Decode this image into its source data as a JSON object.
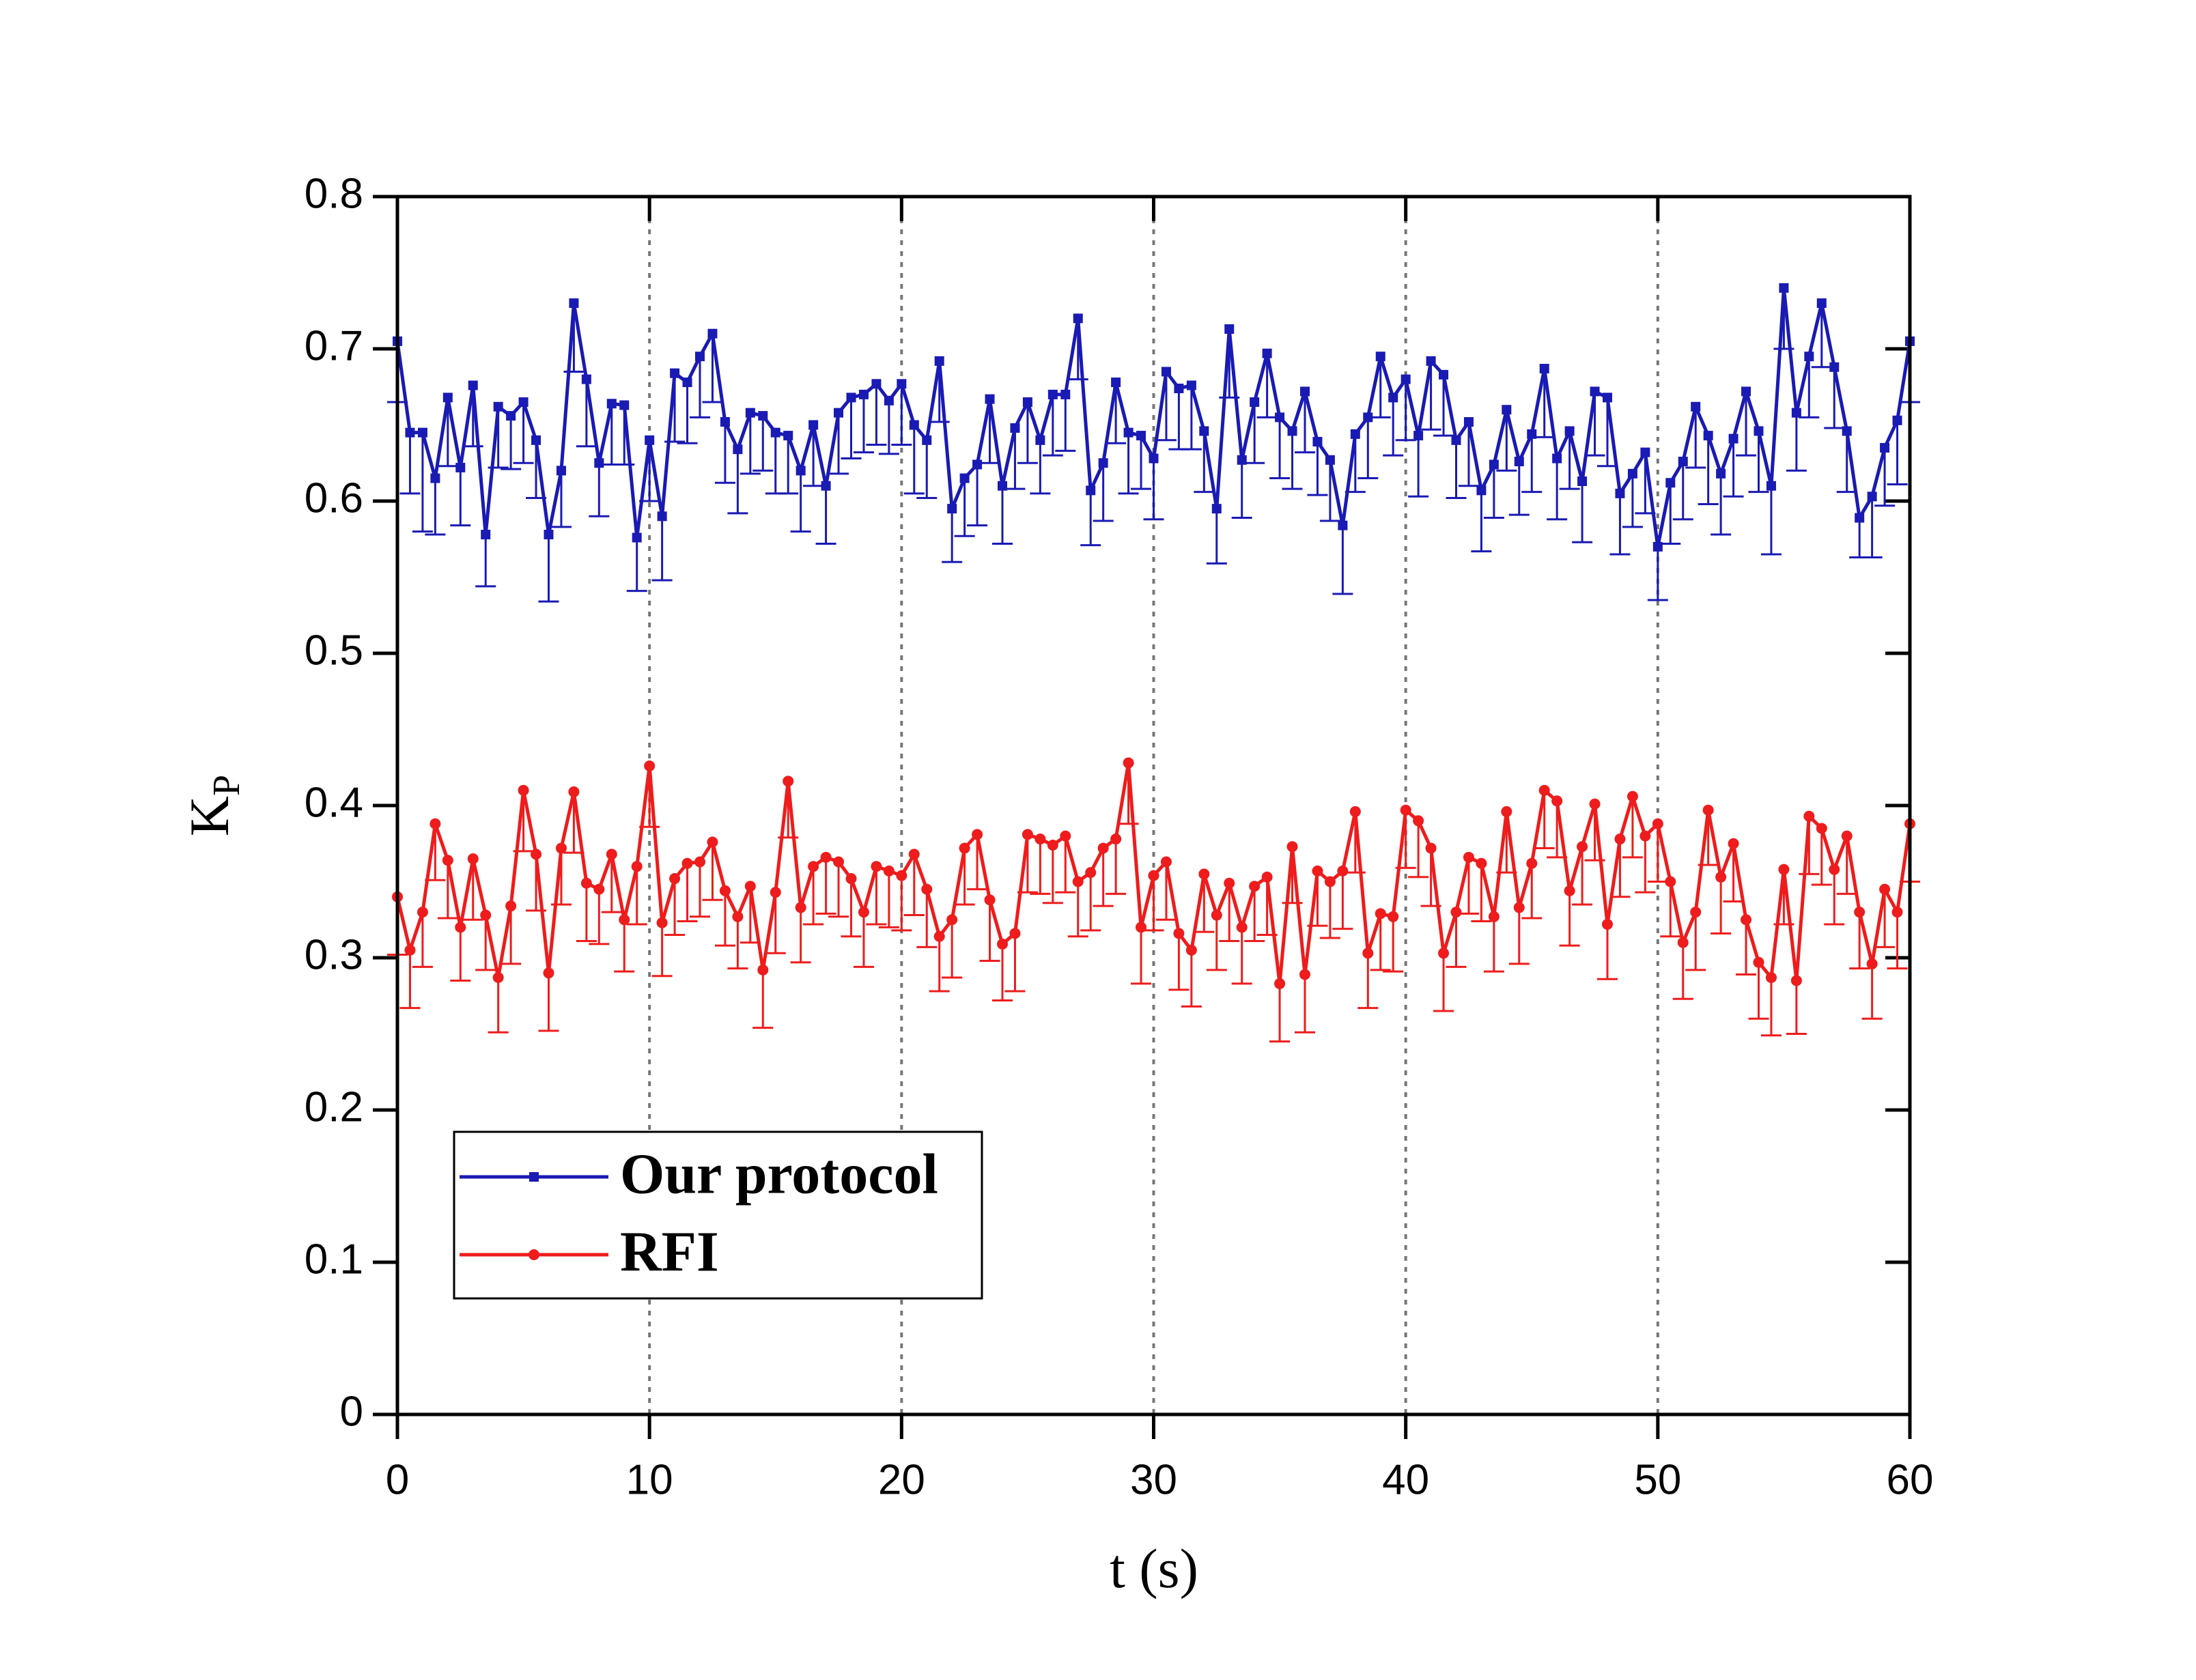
{
  "chart_data": {
    "type": "line",
    "xlabel": "t (s)",
    "ylabel": "K",
    "ylabel_sub": "P",
    "x": [
      0,
      0.5,
      1,
      1.5,
      2,
      2.5,
      3,
      3.5,
      4,
      4.5,
      5,
      5.5,
      6,
      6.5,
      7,
      7.5,
      8,
      8.5,
      9,
      9.5,
      10,
      10.5,
      11,
      11.5,
      12,
      12.5,
      13,
      13.5,
      14,
      14.5,
      15,
      15.5,
      16,
      16.5,
      17,
      17.5,
      18,
      18.5,
      19,
      19.5,
      20,
      20.5,
      21,
      21.5,
      22,
      22.5,
      23,
      23.5,
      24,
      24.5,
      25,
      25.5,
      26,
      26.5,
      27,
      27.5,
      28,
      28.5,
      29,
      29.5,
      30,
      30.5,
      31,
      31.5,
      32,
      32.5,
      33,
      33.5,
      34,
      34.5,
      35,
      35.5,
      36,
      36.5,
      37,
      37.5,
      38,
      38.5,
      39,
      39.5,
      40,
      40.5,
      41,
      41.5,
      42,
      42.5,
      43,
      43.5,
      44,
      44.5,
      45,
      45.5,
      46,
      46.5,
      47,
      47.5,
      48,
      48.5,
      49,
      49.5,
      50,
      50.5,
      51,
      51.5,
      52,
      52.5,
      53,
      53.5,
      54,
      54.5,
      55,
      55.5,
      56,
      56.5,
      57,
      57.5,
      58,
      58.5,
      59,
      59.5,
      60
    ],
    "series": [
      {
        "name": "Our protocol",
        "color": "#1a1ab4",
        "marker": "square",
        "values": [
          0.705,
          0.645,
          0.645,
          0.615,
          0.668,
          0.622,
          0.676,
          0.578,
          0.662,
          0.656,
          0.665,
          0.64,
          0.578,
          0.62,
          0.73,
          0.68,
          0.625,
          0.664,
          0.663,
          0.576,
          0.64,
          0.59,
          0.684,
          0.678,
          0.695,
          0.71,
          0.652,
          0.634,
          0.658,
          0.656,
          0.645,
          0.643,
          0.62,
          0.65,
          0.61,
          0.658,
          0.668,
          0.67,
          0.677,
          0.666,
          0.677,
          0.65,
          0.64,
          0.692,
          0.595,
          0.615,
          0.624,
          0.667,
          0.61,
          0.648,
          0.665,
          0.64,
          0.67,
          0.67,
          0.72,
          0.607,
          0.625,
          0.678,
          0.645,
          0.643,
          0.628,
          0.685,
          0.674,
          0.676,
          0.646,
          0.595,
          0.713,
          0.627,
          0.665,
          0.697,
          0.655,
          0.646,
          0.672,
          0.639,
          0.627,
          0.584,
          0.644,
          0.655,
          0.695,
          0.668,
          0.68,
          0.643,
          0.692,
          0.683,
          0.64,
          0.652,
          0.607,
          0.624,
          0.66,
          0.626,
          0.644,
          0.687,
          0.628,
          0.646,
          0.613,
          0.672,
          0.668,
          0.605,
          0.618,
          0.632,
          0.57,
          0.612,
          0.626,
          0.662,
          0.643,
          0.618,
          0.641,
          0.672,
          0.646,
          0.61,
          0.74,
          0.658,
          0.695,
          0.73,
          0.688,
          0.646,
          0.589,
          0.603,
          0.635,
          0.653,
          0.705
        ],
        "errors": [
          0.04,
          0.04,
          0.065,
          0.037,
          0.045,
          0.038,
          0.04,
          0.034,
          0.04,
          0.035,
          0.04,
          0.038,
          0.044,
          0.037,
          0.045,
          0.044,
          0.035,
          0.04,
          0.039,
          0.035,
          0.04,
          0.042,
          0.045,
          0.04,
          0.04,
          0.045,
          0.04,
          0.042,
          0.04,
          0.036,
          0.04,
          0.038,
          0.04,
          0.04,
          0.038,
          0.04,
          0.04,
          0.038,
          0.04,
          0.035,
          0.04,
          0.045,
          0.038,
          0.04,
          0.035,
          0.038,
          0.04,
          0.042,
          0.038,
          0.04,
          0.04,
          0.035,
          0.04,
          0.037,
          0.04,
          0.036,
          0.038,
          0.04,
          0.04,
          0.035,
          0.04,
          0.045,
          0.04,
          0.042,
          0.04,
          0.036,
          0.045,
          0.038,
          0.04,
          0.042,
          0.04,
          0.038,
          0.04,
          0.035,
          0.04,
          0.045,
          0.038,
          0.04,
          0.04,
          0.038,
          0.04,
          0.04,
          0.045,
          0.04,
          0.038,
          0.042,
          0.04,
          0.035,
          0.04,
          0.035,
          0.038,
          0.045,
          0.04,
          0.038,
          0.04,
          0.042,
          0.045,
          0.04,
          0.035,
          0.04,
          0.035,
          0.04,
          0.038,
          0.04,
          0.045,
          0.04,
          0.038,
          0.042,
          0.04,
          0.045,
          0.04,
          0.038,
          0.04,
          0.042,
          0.04,
          0.04,
          0.026,
          0.04,
          0.038,
          0.042,
          0.04
        ]
      },
      {
        "name": "RFI",
        "color": "#ee1c1c",
        "marker": "circle",
        "values": [
          0.34,
          0.305,
          0.33,
          0.388,
          0.364,
          0.32,
          0.365,
          0.328,
          0.287,
          0.334,
          0.41,
          0.368,
          0.29,
          0.372,
          0.409,
          0.349,
          0.345,
          0.368,
          0.325,
          0.36,
          0.426,
          0.323,
          0.352,
          0.362,
          0.363,
          0.376,
          0.344,
          0.327,
          0.347,
          0.292,
          0.343,
          0.416,
          0.333,
          0.36,
          0.366,
          0.363,
          0.352,
          0.33,
          0.36,
          0.357,
          0.354,
          0.368,
          0.345,
          0.314,
          0.325,
          0.372,
          0.381,
          0.338,
          0.309,
          0.316,
          0.381,
          0.378,
          0.374,
          0.38,
          0.35,
          0.356,
          0.372,
          0.378,
          0.428,
          0.32,
          0.354,
          0.363,
          0.316,
          0.305,
          0.355,
          0.328,
          0.349,
          0.32,
          0.347,
          0.353,
          0.283,
          0.373,
          0.289,
          0.357,
          0.35,
          0.357,
          0.396,
          0.303,
          0.329,
          0.327,
          0.397,
          0.39,
          0.372,
          0.303,
          0.33,
          0.366,
          0.362,
          0.327,
          0.396,
          0.333,
          0.362,
          0.41,
          0.403,
          0.344,
          0.373,
          0.401,
          0.322,
          0.378,
          0.406,
          0.38,
          0.388,
          0.35,
          0.31,
          0.33,
          0.397,
          0.353,
          0.375,
          0.325,
          0.297,
          0.287,
          0.358,
          0.285,
          0.393,
          0.385,
          0.358,
          0.38,
          0.33,
          0.296,
          0.345,
          0.33,
          0.388
        ],
        "errors": [
          0.038,
          0.038,
          0.036,
          0.037,
          0.038,
          0.035,
          0.04,
          0.036,
          0.036,
          0.038,
          0.04,
          0.037,
          0.038,
          0.037,
          0.04,
          0.038,
          0.036,
          0.038,
          0.034,
          0.038,
          0.04,
          0.035,
          0.037,
          0.038,
          0.036,
          0.038,
          0.036,
          0.034,
          0.037,
          0.038,
          0.04,
          0.037,
          0.036,
          0.038,
          0.037,
          0.036,
          0.038,
          0.036,
          0.038,
          0.037,
          0.036,
          0.04,
          0.038,
          0.036,
          0.038,
          0.037,
          0.036,
          0.04,
          0.037,
          0.038,
          0.038,
          0.036,
          0.038,
          0.037,
          0.036,
          0.038,
          0.038,
          0.036,
          0.04,
          0.037,
          0.036,
          0.038,
          0.037,
          0.037,
          0.038,
          0.036,
          0.038,
          0.037,
          0.036,
          0.038,
          0.038,
          0.037,
          0.038,
          0.036,
          0.037,
          0.038,
          0.04,
          0.036,
          0.037,
          0.036,
          0.038,
          0.037,
          0.038,
          0.038,
          0.036,
          0.037,
          0.038,
          0.036,
          0.04,
          0.037,
          0.036,
          0.038,
          0.037,
          0.036,
          0.038,
          0.037,
          0.036,
          0.038,
          0.04,
          0.037,
          0.038,
          0.036,
          0.037,
          0.038,
          0.036,
          0.037,
          0.038,
          0.036,
          0.037,
          0.038,
          0.036,
          0.035,
          0.038,
          0.037,
          0.036,
          0.038,
          0.037,
          0.036,
          0.038,
          0.037,
          0.038
        ]
      }
    ],
    "xlim": [
      0,
      60
    ],
    "xticks": [
      0,
      10,
      20,
      30,
      40,
      50,
      60
    ],
    "ylim": [
      0,
      0.8
    ],
    "yticks": [
      0,
      0.1,
      0.2,
      0.3,
      0.4,
      0.5,
      0.6,
      0.7,
      0.8
    ],
    "xgrid": true,
    "legend": "lower left"
  }
}
